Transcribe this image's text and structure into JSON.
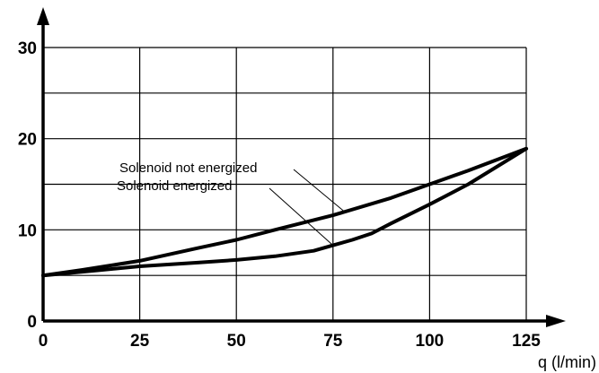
{
  "chart_data": {
    "type": "line",
    "title": "",
    "xlabel": "q (l/min)",
    "ylabel": "",
    "xlim": [
      0,
      125
    ],
    "ylim": [
      0,
      30
    ],
    "x_ticks": [
      "0",
      "25",
      "50",
      "75",
      "100",
      "125"
    ],
    "y_ticks": [
      "0",
      "10",
      "20",
      "30"
    ],
    "x_grid": [
      0,
      25,
      50,
      75,
      100,
      125
    ],
    "y_grid": [
      0,
      5,
      10,
      15,
      20,
      25,
      30
    ],
    "grid": true,
    "series": [
      {
        "name": "Solenoid not energized",
        "x": [
          0,
          10,
          25,
          40,
          50,
          60,
          75,
          90,
          100,
          110,
          125
        ],
        "y": [
          5,
          5.6,
          6.6,
          8,
          8.9,
          10,
          11.6,
          13.5,
          15,
          16.5,
          18.9
        ]
      },
      {
        "name": "Solenoid energized",
        "x": [
          0,
          15,
          25,
          40,
          50,
          60,
          70,
          75,
          80,
          85,
          90,
          100,
          110,
          125
        ],
        "y": [
          5,
          5.6,
          6,
          6.4,
          6.7,
          7.1,
          7.7,
          8.3,
          8.9,
          9.6,
          10.7,
          12.8,
          15,
          18.9
        ]
      }
    ],
    "annotations": [
      {
        "text": "Solenoid not energized",
        "target_series": 0,
        "target_x": 78
      },
      {
        "text": "Solenoid energized",
        "target_series": 1,
        "target_x": 75
      }
    ]
  }
}
